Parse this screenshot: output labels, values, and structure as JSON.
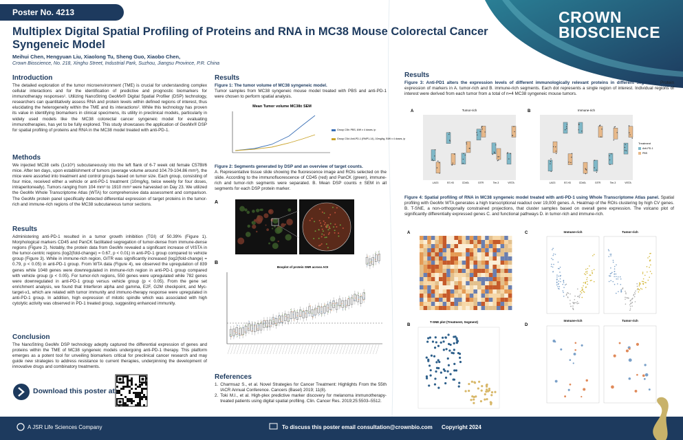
{
  "header": {
    "poster_no": "Poster No. 4213",
    "title": "Multiplex Digital Spatial Profiling of Proteins and RNA in MC38 Mouse Colorectal Cancer Syngeneic Model",
    "authors": "Meihui Chen, Hengyuan Liu, Xiaolong Tu, Sheng Guo, Xiaobo Chen,",
    "affiliation": "Crown Bioscience, No. 218, Xinghu Street, Industrial Park, Suzhou, Jiangsu Province, P.R. China",
    "logo": {
      "line1": "CROWN",
      "line2": "BIOSCIENCE"
    }
  },
  "introduction": {
    "heading": "Introduction",
    "body": "The detailed exploration of the tumor microenvironment (TME) is crucial for understanding complex cellular interactions and for the identification of predictive and prognostic biomarkers for immunotherapy responses¹. Utilizing NanoString GeoMx® Digital Spatial Profiler (DSP) technology, researchers can quantitatively assess RNA and protein levels within defined regions of interest, thus elucidating the heterogeneity within the TME and its interactions². While this technology has proven its value in identifying biomarkers in clinical specimens, its utility in preclinical models, particularly in widely used models like the MC38 colorectal cancer syngeneic model for evaluating immunotherapies, has yet to be fully explored. This study showcases the application of GeoMx® DSP for spatial profiling of proteins and RNA in the MC38 model treated with anti-PD-1."
  },
  "methods": {
    "heading": "Methods",
    "body": "We injected MC38 cells (1x10⁶) subcutaneously into the left flank of 6-7 week old female C57Bl/6 mice. After ten days, upon establishment of tumors (average volume around 104.79-104.86 mm³), the mice were assorted into treatment and control groups based on tumor size. Each group, consisting of four mice, received either a vehicle or anti-PD-1 treatment (10mg/kg, twice weekly for four doses, intraperitoneally). Tumors ranging from 104 mm³ to 1910 mm³ were harvested on Day 23. We utilized the GeoMx Whole Transcriptome Atlas (WTA) for comprehensive data assessment and comparison. The GeoMx protein panel specifically detected differential expression of target proteins in the tumor-rich and immune-rich regions of the MC38 subcutaneous tumor sections."
  },
  "results": {
    "heading": "Results",
    "body": "Administering anti-PD-1 resulted in a tumor growth inhibition (TGI) of 50.39% (Figure 1). Morphological markers CD45 and PanCK facilitated segregation of tumor-dense from immune-dense regions (Figure 2). Notably, the protein data from GeoMx revealed a significant increase of VISTA in the tumor-centric regions (log2(fold-change) = 0.67, p < 0.01) in anti-PD-1 group compared to vehicle group (Figure 3). While in immune-rich region, GITR was significantly increased (log2(fold-change) = 0.79, p < 0.05) in anti-PD-1 group. From WTA data (Figure 4), we observed the upregulation of 839 genes while 1048 genes were downregulated in immune-rich region in anti-PD-1 group compared with vehicle group (p < 0.05). For tumor-rich regions, 550 genes were upregulated while 782 genes were downregulated in anti-PD-1 group versus vehicle group (p < 0.05). From the gene set enrichment analysis, we found that Interferon alpha and gamma, E2F, G2M checkpoint, and Myc-target-v1, which are related with tumor immunity and immuno-therapy response were upregulated in anti-PD-1 group. In addition, high expression of mitotic spindle which was associated with high cytolytic activity was observed in PD-1 treated group, suggesting enhanced immunity."
  },
  "conclusion": {
    "heading": "Conclusion",
    "body": "The NanoString GeoMx DSP technology adeptly captured the differential expression of genes and proteins within the TME of MC38 syngeneic models undergoing anti-PD-1 therapy. This platform emerges as a potent tool for unveiling biomarkers critical for preclinical cancer research and may guide new strategies to address resistance to current therapies, underpinning the development of innovative drugs and combinatory treatments."
  },
  "download": {
    "text": "Download this poster at:"
  },
  "results_middle": {
    "heading": "Results"
  },
  "figure1": {
    "caption_bold": "Figure 1: The tumor volume of MC38 syngeneic model.",
    "caption": "Tumor samples from MC38 syngeneic mouse model treated with PBS and anti-PD-1 were chosen to perform spatial analysis.",
    "chart_title": "Mean Tumor volume MC38± SEM",
    "legend": [
      "Group C5b: PBS, 6/W x 4 doses, ip",
      "Group C5d: Anti-PD-1 (RMP1-14), 10mg/kg, BIW x 4 doses, ip"
    ]
  },
  "figure2": {
    "caption_bold": "Figure 2: Segments generated by DSP and an overview of target counts.",
    "caption": "A. Representative tissue slide showing the fluorescence image and ROIs selected on the slide. According to the immunofluorescence of CD45 (red) and PanCK (green), immune-rich and tumor-rich segments were separated. B. Mean DSP counts ± SEM in all segments for each DSP protein marker.",
    "panel_a": "A",
    "panel_b": "B",
    "chart_title": "Boxplot of protein SNR across AOI"
  },
  "references": {
    "heading": "References",
    "items": [
      {
        "num": "1.",
        "text": "Charmsaz S., et al. Novel Strategies for Cancer Treatment: Highlights From the 55th IACR Annual Conference. Cancers (Basel) 2019; 11(8)."
      },
      {
        "num": "2.",
        "text": "Toki M.I., et al. High-plex predictive marker discovery for melanoma immunotherapy-treated patients using digital spatial profiling. Clin. Cancer Res. 2019;25:5503–5512."
      }
    ]
  },
  "results_right": {
    "heading": "Results"
  },
  "figure3": {
    "caption_bold": "Figure 3: Anti-PD1 alters the expression levels of different immunologically relevant proteins in different segments.",
    "caption": "Protein expression of markers in A. tumor-rich and B. immune-rich segments. Each dot represents a single region of interest. Individual regions of interest were derived from each tumor from a total of n=4 MC38 syngeneic mouse tumors.",
    "panels": [
      {
        "label": "A",
        "title": "Tumor-rich"
      },
      {
        "label": "B",
        "title": "Immune-rich"
      }
    ],
    "markers": [
      "LAG3",
      "B7-H3",
      "CD40L",
      "GITR",
      "Tim-3",
      "VISTA"
    ],
    "legend_title": "Treatment",
    "legend": [
      "Anti-PD-1",
      "PBS"
    ]
  },
  "figure4": {
    "caption_bold": "Figure 4: Spatial profiling of RNA in MC38 syngeneic model treated with anti-PD-1 using Whole Transcriptome Atlas panel.",
    "caption": "Spatial profiling with GeoMx WTA generates a high transcriptional readout over 19,000 genes. A. Heatmap of the ROIs clustering by high CV genes. B. T-SNE, a non-orthogonally constrained projections, that cluster samples based on overall gene expression. The volcano plot of significantly differentially expressed genes C. and functional pathways D. in tumor-rich and immune-rich.",
    "panel_a": "A",
    "panel_b": "B",
    "panel_c": "C",
    "panel_d": "D",
    "tsne_title": "T-SNE plot (Treatment, Segment)",
    "c_titles": [
      "Immune-rich",
      "Tumor-rich"
    ],
    "d_titles": [
      "Immune-rich",
      "Tumor-rich"
    ]
  },
  "footer": {
    "company": "A JSR Life Sciences Company",
    "contact": "To discuss this poster email consultation@crownbio.com",
    "copyright": "Copyright 2024"
  }
}
